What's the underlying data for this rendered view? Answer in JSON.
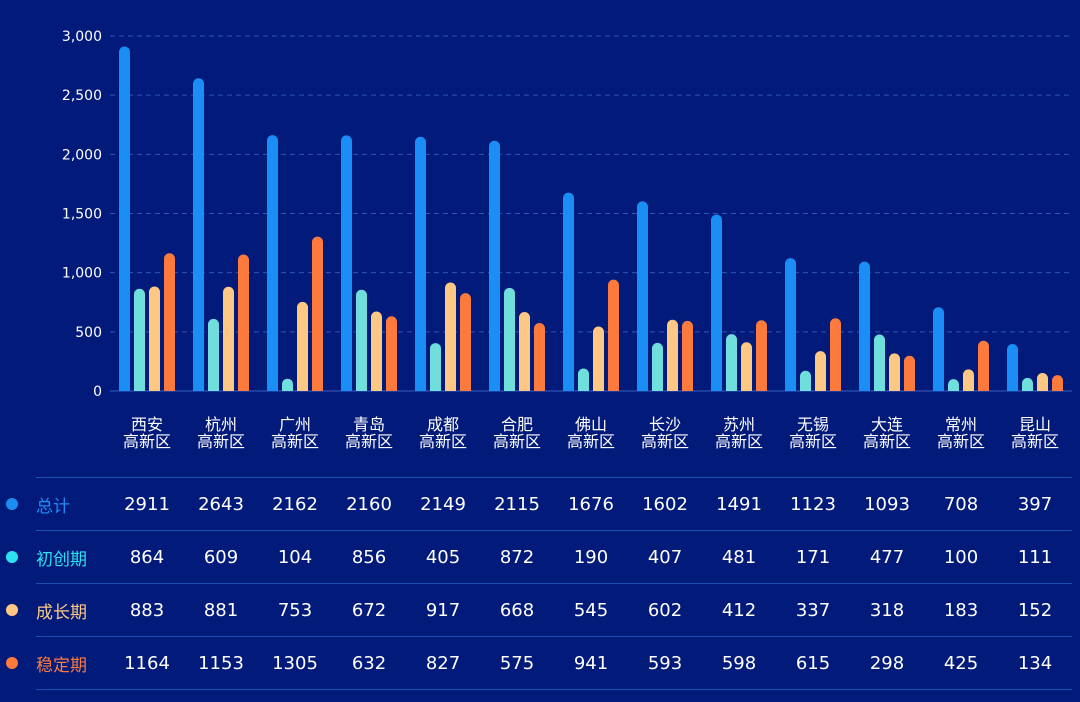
{
  "chart_data": {
    "type": "bar",
    "categories": [
      [
        "西安",
        "高新区"
      ],
      [
        "杭州",
        "高新区"
      ],
      [
        "广州",
        "高新区"
      ],
      [
        "青岛",
        "高新区"
      ],
      [
        "成都",
        "高新区"
      ],
      [
        "合肥",
        "高新区"
      ],
      [
        "佛山",
        "高新区"
      ],
      [
        "长沙",
        "高新区"
      ],
      [
        "苏州",
        "高新区"
      ],
      [
        "无锡",
        "高新区"
      ],
      [
        "大连",
        "高新区"
      ],
      [
        "常州",
        "高新区"
      ],
      [
        "昆山",
        "高新区"
      ]
    ],
    "series": [
      {
        "name": "总计",
        "color": "#1b8ef5",
        "label_color": "#1b8ef5",
        "values": [
          2911,
          2643,
          2162,
          2160,
          2149,
          2115,
          1676,
          1602,
          1491,
          1123,
          1093,
          708,
          397
        ]
      },
      {
        "name": "初创期",
        "color": "#6fdedc",
        "label_color": "#2fe0f0",
        "values": [
          864,
          609,
          104,
          856,
          405,
          872,
          190,
          407,
          481,
          171,
          477,
          100,
          111
        ]
      },
      {
        "name": "成长期",
        "color": "#fcc883",
        "label_color": "#fcc883",
        "values": [
          883,
          881,
          753,
          672,
          917,
          668,
          545,
          602,
          412,
          337,
          318,
          183,
          152
        ]
      },
      {
        "name": "稳定期",
        "color": "#fb7a3c",
        "label_color": "#fb7a3c",
        "values": [
          1164,
          1153,
          1305,
          632,
          827,
          575,
          941,
          593,
          598,
          615,
          298,
          425,
          134
        ]
      }
    ],
    "yticks": [
      "0",
      "500",
      "1,000",
      "1,500",
      "2,000",
      "2,500",
      "3,000"
    ],
    "ylim": [
      0,
      3000
    ],
    "grid": true
  }
}
